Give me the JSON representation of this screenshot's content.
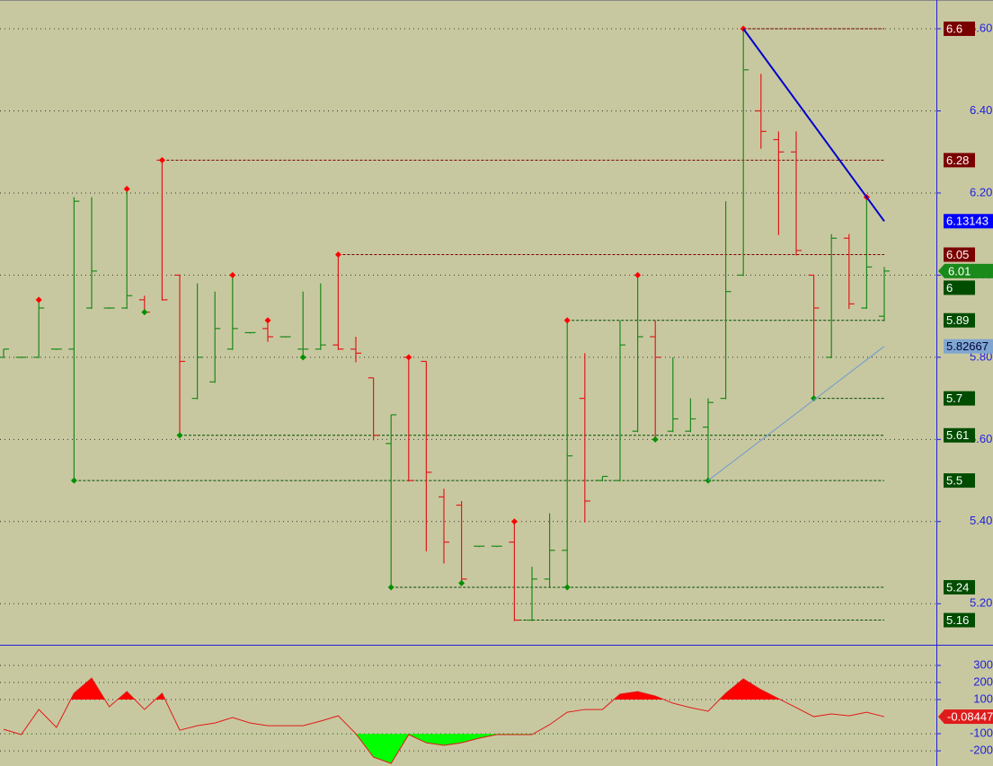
{
  "chart_data": {
    "type": "ohlc",
    "ylim": [
      5.1,
      6.67
    ],
    "yticks": [
      {
        "value": 5.2,
        "label": "5.20"
      },
      {
        "value": 5.4,
        "label": "5.40"
      },
      {
        "value": 5.6,
        "label": "5.60"
      },
      {
        "value": 5.8,
        "label": "5.80"
      },
      {
        "value": 6.0,
        "label": "6.00"
      },
      {
        "value": 6.2,
        "label": "6.20"
      },
      {
        "value": 6.4,
        "label": "6.40"
      },
      {
        "value": 6.6,
        "label": "6.60"
      }
    ],
    "grid": true,
    "colors": {
      "up": "#1a8a1a",
      "down": "#e01b1b",
      "background": "#c8c8a0",
      "axis": "#2020e0"
    },
    "open": [
      5.8,
      5.8,
      5.8,
      5.82,
      5.82,
      5.92,
      5.92,
      5.92,
      5.94,
      6.28,
      6.0,
      5.7,
      5.74,
      5.82,
      5.86,
      5.87,
      5.85,
      5.82,
      5.82,
      5.83,
      5.82,
      5.75,
      5.59,
      5.8,
      5.79,
      5.46,
      5.44,
      5.34,
      5.34,
      5.35,
      5.16,
      5.26,
      5.33,
      5.7,
      5.5,
      5.5,
      5.62,
      5.85,
      5.62,
      5.62,
      5.63,
      5.7,
      6.0,
      6.4,
      6.33,
      6.3,
      6.0,
      5.8,
      6.09,
      5.92,
      5.9
    ],
    "high": [
      5.82,
      5.8,
      5.94,
      5.82,
      6.19,
      6.19,
      5.92,
      6.21,
      5.95,
      6.28,
      6.0,
      5.98,
      5.96,
      6.0,
      5.86,
      5.89,
      5.85,
      5.96,
      5.98,
      6.05,
      5.85,
      5.75,
      5.66,
      5.8,
      5.79,
      5.48,
      5.45,
      5.34,
      5.34,
      5.4,
      5.29,
      5.42,
      5.89,
      5.81,
      5.51,
      5.89,
      6.0,
      5.89,
      5.8,
      5.7,
      5.7,
      6.18,
      6.6,
      6.49,
      6.35,
      6.35,
      6.0,
      6.1,
      6.1,
      6.19,
      6.02
    ],
    "low": [
      5.8,
      5.8,
      5.8,
      5.82,
      5.5,
      5.92,
      5.92,
      5.92,
      5.91,
      5.94,
      5.61,
      5.7,
      5.74,
      5.82,
      5.86,
      5.84,
      5.85,
      5.8,
      5.82,
      5.82,
      5.79,
      5.6,
      5.24,
      5.5,
      5.33,
      5.3,
      5.25,
      5.34,
      5.34,
      5.16,
      5.16,
      5.24,
      5.24,
      5.4,
      5.5,
      5.5,
      5.62,
      5.6,
      5.62,
      5.62,
      5.5,
      5.7,
      6.0,
      6.31,
      6.1,
      6.05,
      5.7,
      5.8,
      5.92,
      5.92,
      5.89
    ],
    "close": [
      5.82,
      5.8,
      5.92,
      5.82,
      6.18,
      6.01,
      5.92,
      5.95,
      5.91,
      5.94,
      5.79,
      5.8,
      5.87,
      5.87,
      5.86,
      5.85,
      5.85,
      5.82,
      5.83,
      5.82,
      5.81,
      5.61,
      5.66,
      5.5,
      5.52,
      5.35,
      5.26,
      5.34,
      5.34,
      5.16,
      5.26,
      5.33,
      5.56,
      5.45,
      5.51,
      5.83,
      5.85,
      5.8,
      5.65,
      5.65,
      5.69,
      5.96,
      6.5,
      6.35,
      6.3,
      6.06,
      5.92,
      6.09,
      5.93,
      6.02,
      6.01
    ],
    "pivot_highs": [
      2,
      7,
      9,
      13,
      15,
      19,
      23,
      29,
      32,
      36,
      42,
      49
    ],
    "pivot_lows": [
      4,
      8,
      10,
      17,
      22,
      26,
      32,
      37,
      40,
      46
    ],
    "levels": [
      {
        "value": 6.6,
        "color": "#7a0000",
        "from": 42
      },
      {
        "value": 6.28,
        "color": "#7a0000",
        "from": 9
      },
      {
        "value": 6.05,
        "color": "#7a0000",
        "from": 19
      },
      {
        "value": 5.89,
        "color": "#004d00",
        "from": 32
      },
      {
        "value": 5.7,
        "color": "#004d00",
        "from": 46
      },
      {
        "value": 5.61,
        "color": "#004d00",
        "from": 10
      },
      {
        "value": 5.5,
        "color": "#004d00",
        "from": 4
      },
      {
        "value": 5.24,
        "color": "#004d00",
        "from": 22
      },
      {
        "value": 5.16,
        "color": "#004d00",
        "from": 29
      }
    ],
    "markers": [
      {
        "value": 6,
        "color": "#004d00"
      }
    ],
    "trendlines": [
      {
        "from": [
          42,
          6.6
        ],
        "to": [
          50,
          6.13143
        ],
        "color": "#0000cc",
        "label_color": "#0000ff",
        "text_color": "#ffffff",
        "width": 2
      },
      {
        "from": [
          40,
          5.5
        ],
        "to": [
          50,
          5.82667
        ],
        "color": "#6f9ad0",
        "label_color": "#7fa6d0",
        "text_color": "#00003a",
        "width": 1
      }
    ],
    "indicator": {
      "type": "line",
      "ylim": [
        -289,
        421
      ],
      "yticks": [
        -200,
        -100,
        100,
        200,
        300
      ],
      "color": "#e01b1b",
      "bands": [
        {
          "value": 100,
          "color": "#ff0000",
          "side": "above"
        },
        {
          "value": -100,
          "color": "#00ff00",
          "side": "below"
        }
      ],
      "values": [
        -74,
        -105,
        42,
        -63,
        137,
        226,
        58,
        147,
        42,
        137,
        -79,
        -53,
        -37,
        -5,
        -37,
        -53,
        -53,
        -53,
        -26,
        5,
        -100,
        -237,
        -274,
        -105,
        -153,
        -168,
        -153,
        -126,
        -105,
        -105,
        -105,
        -47,
        26,
        42,
        42,
        132,
        147,
        121,
        79,
        53,
        32,
        137,
        221,
        158,
        105,
        53,
        0,
        16,
        5,
        26,
        -0.08447
      ]
    }
  }
}
